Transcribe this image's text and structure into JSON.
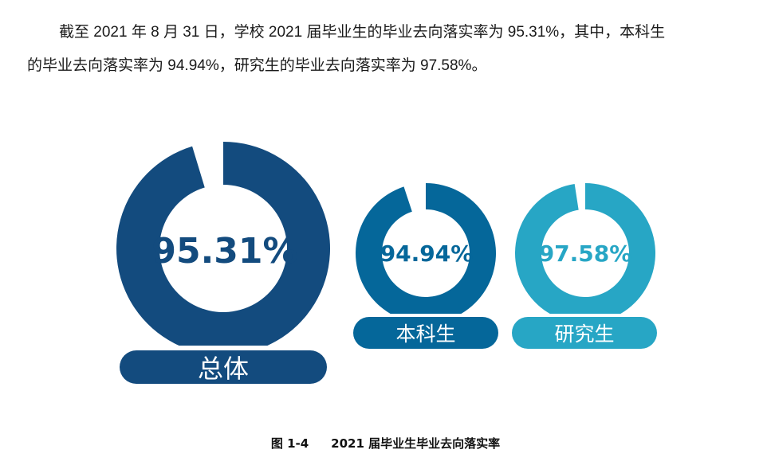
{
  "paragraph": {
    "line1": "截至 2021 年 8 月 31 日，学校 2021 届毕业生的毕业去向落实率为 95.31%，其中，本科生",
    "line2": "的毕业去向落实率为 94.94%，研究生的毕业去向落实率为 97.58%。"
  },
  "caption": {
    "figure_number": "图 1-4",
    "title": "2021 届毕业生毕业去向落实率"
  },
  "chart_data": {
    "type": "pie",
    "subtype": "donut",
    "title": "2021 届毕业生毕业去向落实率",
    "categories": [
      "总体",
      "本科生",
      "研究生"
    ],
    "values": [
      95.31,
      94.94,
      97.58
    ],
    "labels": [
      "95.31%",
      "94.94%",
      "97.58%"
    ],
    "unit": "%",
    "colors": [
      "#134B7E",
      "#05679A",
      "#27A6C5"
    ],
    "legend": "none"
  },
  "donuts": [
    {
      "name": "总体",
      "value_label": "95.31%",
      "value": 95.31,
      "color": "#134B7E"
    },
    {
      "name": "本科生",
      "value_label": "94.94%",
      "value": 94.94,
      "color": "#05679A"
    },
    {
      "name": "研究生",
      "value_label": "97.58%",
      "value": 97.58,
      "color": "#27A6C5"
    }
  ]
}
